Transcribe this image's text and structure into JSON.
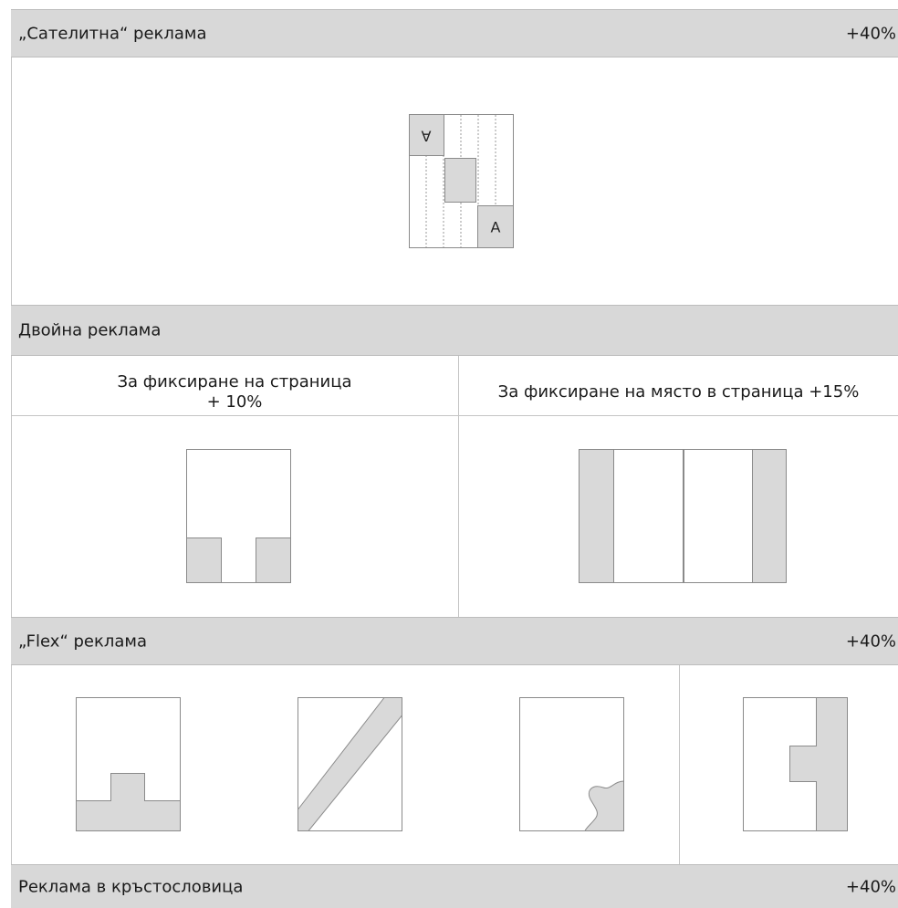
{
  "satellite": {
    "title": "„Сателитна“ реклама",
    "surcharge": "+40%",
    "letter_top": "A",
    "letter_bottom": "A"
  },
  "double": {
    "title": "Двойна реклама",
    "page_fixed_label": "За фиксиране на страница",
    "page_fixed_surcharge": "+ 10%",
    "place_fixed_label": "За фиксиране на място в страница +15%"
  },
  "flex": {
    "title": "„Flex“ реклама",
    "surcharge": "+40%"
  },
  "crossword": {
    "title": "Реклама в кръстословица",
    "surcharge": "+40%"
  },
  "colors": {
    "header_bg": "#d8d8d8",
    "ad_fill": "#d9d9d9",
    "line": "#8a8a8a"
  }
}
